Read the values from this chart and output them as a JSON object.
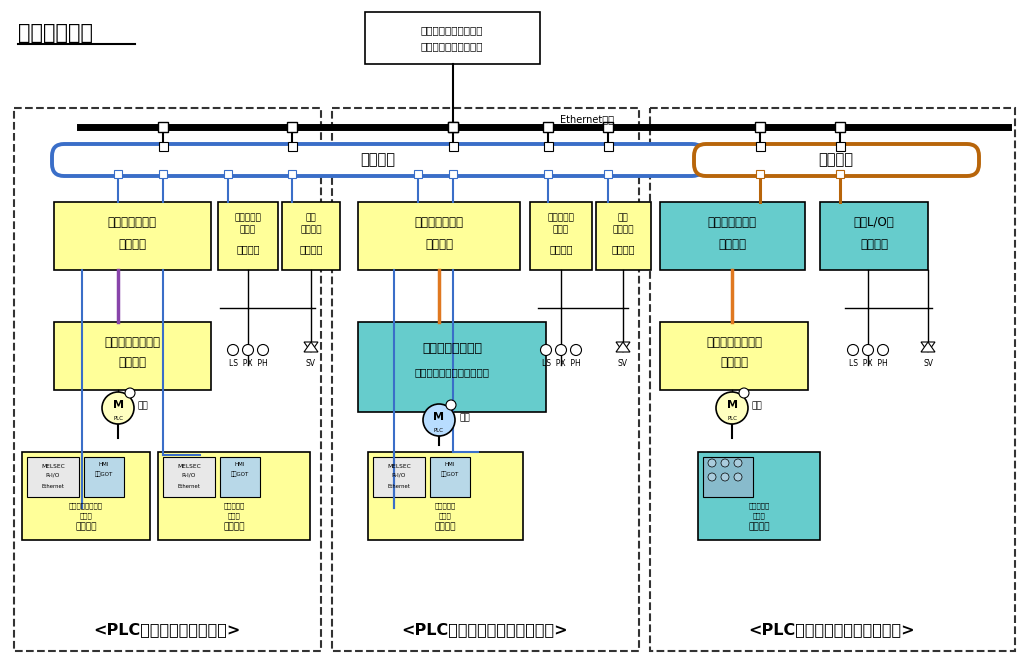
{
  "title": "更新パターン",
  "bg_color": "#ffffff",
  "colors": {
    "yellow": "#FFFF99",
    "teal": "#66CCCC",
    "blue_bus": "#3A6EC8",
    "brown_bus": "#B8650A",
    "purple": "#8844AA",
    "orange": "#E07820",
    "light_blue": "#AADDFF",
    "panel_gray": "#DDDDDD"
  },
  "section_labels": [
    "<PLC＋ドライブ装置更新>",
    "<PLC更新、ドライブ装置流用>",
    "<PLC流用、ドライブ装置更新>"
  ],
  "pc_label_1": "プロセスコンピュータ",
  "pc_label_2": "（情報処理システム）",
  "ethernet_label": "Ethernet通信",
  "hanyo_label": "汎用通信",
  "kisen_label": "既設通信"
}
